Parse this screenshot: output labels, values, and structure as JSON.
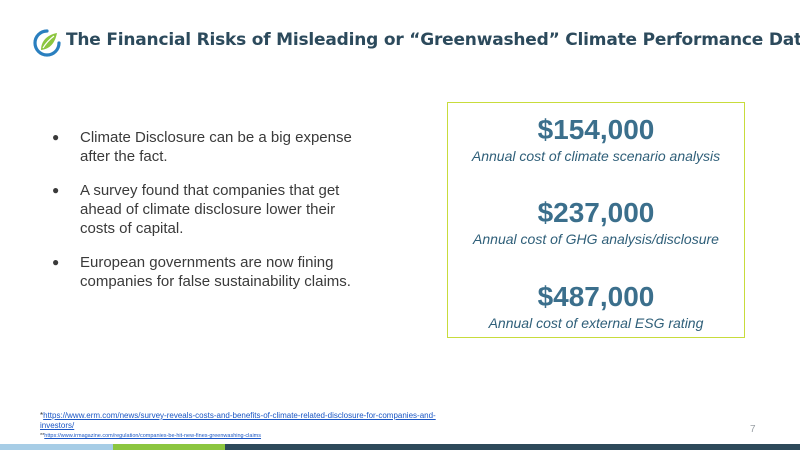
{
  "colors": {
    "title": "#2c4a5c",
    "stat_value": "#3b6f8c",
    "box_border": "#c8dc3c",
    "logo_blue": "#2a7fbf",
    "logo_green": "#8cc63f",
    "bar_light_blue": "#a7cde6",
    "bar_green": "#8cc63f",
    "bar_dark": "#2d4a5a"
  },
  "header": {
    "logo_icon": "leaf-swirl-logo",
    "title": "The Financial Risks of Misleading or “Greenwashed” Climate Performance Data"
  },
  "bullets": [
    "Climate Disclosure can be a big expense after the fact.",
    "A survey found that companies that get ahead of climate disclosure lower their costs of capital.",
    "European governments are now fining companies for false sustainability claims."
  ],
  "bullet_symbol": "●",
  "stats": [
    {
      "value": "$154,000",
      "label": "Annual cost of climate scenario analysis"
    },
    {
      "value": "$237,000",
      "label": "Annual cost of GHG analysis/disclosure"
    },
    {
      "value": "$487,000",
      "label": "Annual cost of external ESG rating"
    }
  ],
  "footnotes": [
    {
      "prefix": "*",
      "link": "https://www.erm.com/news/survey-reveals-costs-and-benefits-of-climate-related-disclosure-for-companies-and-investors/"
    },
    {
      "prefix": "**",
      "link": "https://www.irmagazine.com/regulation/companies-be-hit-new-fines-greenwashing-claims"
    }
  ],
  "page_number": "7"
}
